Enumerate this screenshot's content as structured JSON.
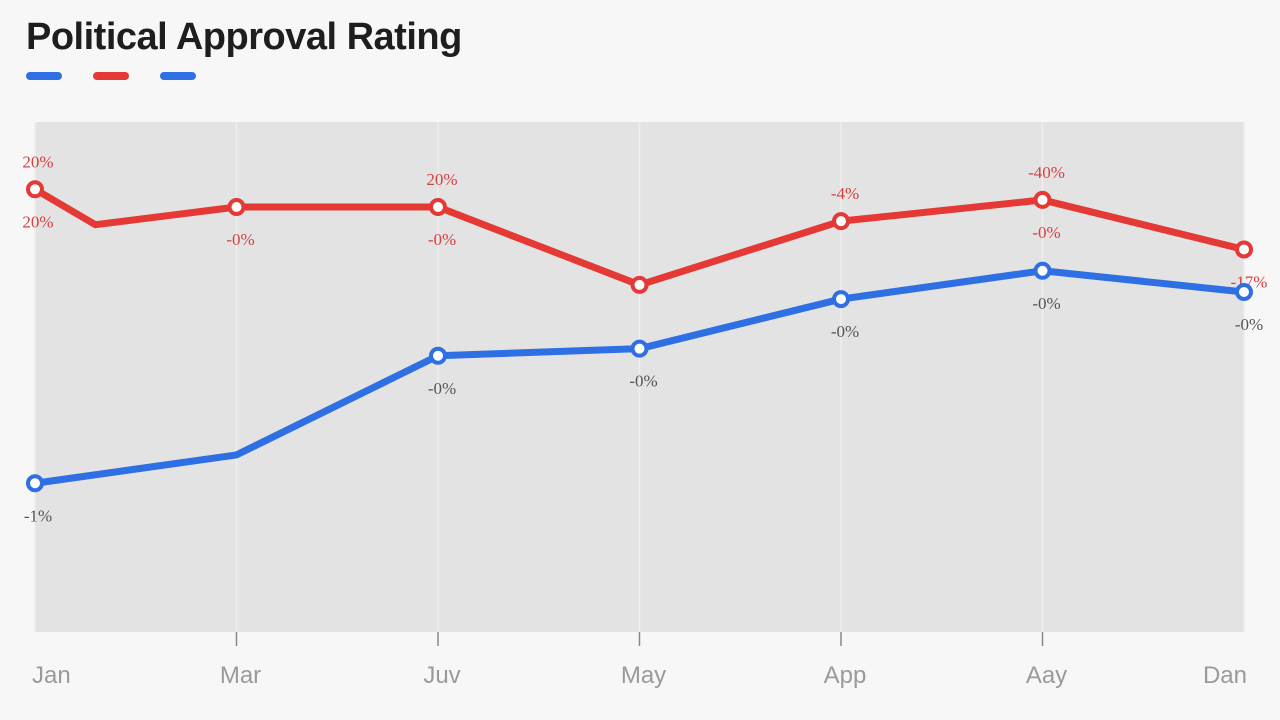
{
  "chart_data": {
    "type": "line",
    "title": "Political Approval Rating",
    "xlabel": "",
    "ylabel": "",
    "categories": [
      "Jan",
      "Mar",
      "Juv",
      "May",
      "App",
      "Aay",
      "Dan"
    ],
    "grid": true,
    "legend_position": "top-left",
    "series": [
      {
        "color": "#e53935",
        "x": [
          0,
          0.3,
          1,
          2,
          3,
          4,
          5,
          6
        ],
        "values": [
          62.5,
          57.5,
          60,
          60,
          49,
          58,
          61,
          54
        ],
        "markers": [
          0,
          2,
          3,
          4,
          5,
          6,
          7
        ],
        "labels": [
          {
            "i": 0,
            "text": "20%",
            "pos": "above"
          },
          {
            "i": 0,
            "text": "20%",
            "pos": "below"
          },
          {
            "i": 2,
            "text": "-0%",
            "pos": "below"
          },
          {
            "i": 3,
            "text": "20%",
            "pos": "above"
          },
          {
            "i": 3,
            "text": "-0%",
            "pos": "below"
          },
          {
            "i": 5,
            "text": "-4%",
            "pos": "above"
          },
          {
            "i": 6,
            "text": "-40%",
            "pos": "above"
          },
          {
            "i": 6,
            "text": "-0%",
            "pos": "below"
          },
          {
            "i": 7,
            "text": "-17%",
            "pos": "below"
          }
        ]
      },
      {
        "color": "#2f6fe4",
        "x": [
          0,
          1,
          2,
          3,
          4,
          5,
          6
        ],
        "values": [
          21,
          25,
          39,
          40,
          47,
          51,
          48
        ],
        "markers": [
          0,
          2,
          3,
          4,
          5,
          6
        ],
        "labels": [
          {
            "i": 0,
            "text": "-1%",
            "pos": "below"
          },
          {
            "i": 2,
            "text": "-0%",
            "pos": "below"
          },
          {
            "i": 3,
            "text": "-0%",
            "pos": "below"
          },
          {
            "i": 4,
            "text": "-0%",
            "pos": "below"
          },
          {
            "i": 5,
            "text": "-0%",
            "pos": "below"
          },
          {
            "i": 6,
            "text": "-0%",
            "pos": "below"
          }
        ]
      }
    ],
    "ylim": [
      0,
      72
    ],
    "legend_colors": [
      "#2f6fe4",
      "#e53935",
      "#2f6fe4"
    ]
  }
}
